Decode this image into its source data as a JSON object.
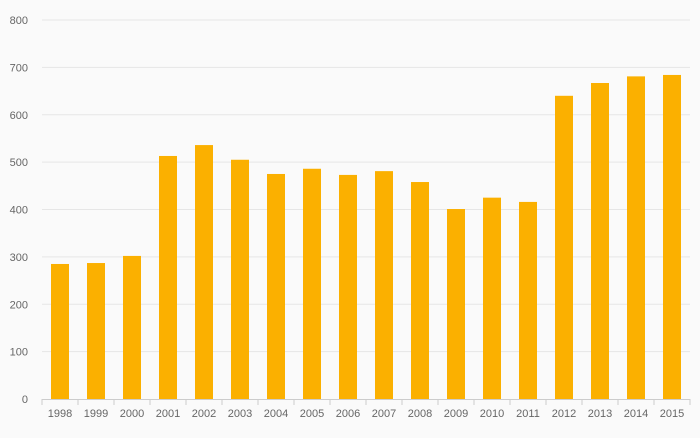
{
  "chart_data": {
    "type": "bar",
    "title": "",
    "xlabel": "",
    "ylabel": "",
    "categories": [
      "1998",
      "1999",
      "2000",
      "2001",
      "2002",
      "2003",
      "2004",
      "2005",
      "2006",
      "2007",
      "2008",
      "2009",
      "2010",
      "2011",
      "2012",
      "2013",
      "2014",
      "2015"
    ],
    "values": [
      285,
      287,
      302,
      513,
      536,
      505,
      475,
      486,
      473,
      481,
      458,
      401,
      425,
      416,
      640,
      667,
      681,
      684
    ],
    "ylim": [
      0,
      800
    ],
    "yticks": [
      0,
      100,
      200,
      300,
      400,
      500,
      600,
      700,
      800
    ],
    "grid": true,
    "legend": "none",
    "colors": {
      "bar": "#fbb000",
      "grid": "#e6e6e6",
      "axis": "#cccccc",
      "background": "#fafafa",
      "text": "#666666"
    }
  }
}
